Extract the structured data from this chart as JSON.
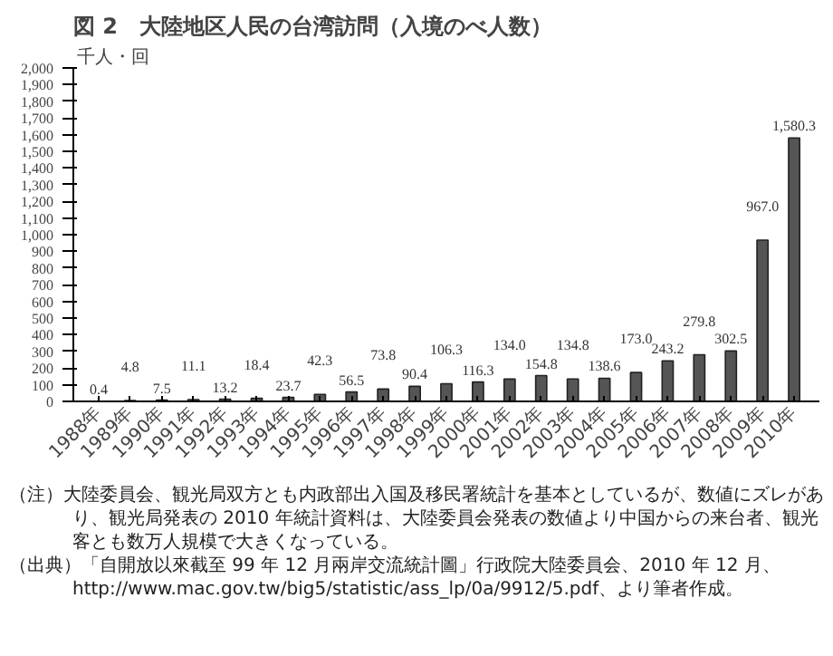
{
  "chart_data": {
    "type": "bar",
    "title": "図 2　大陸地区人民の台湾訪問（入境のべ人数）",
    "ylabel": "千人・回",
    "categories": [
      "1988年",
      "1989年",
      "1990年",
      "1991年",
      "1992年",
      "1993年",
      "1994年",
      "1995年",
      "1996年",
      "1997年",
      "1998年",
      "1999年",
      "2000年",
      "2001年",
      "2002年",
      "2003年",
      "2004年",
      "2005年",
      "2006年",
      "2007年",
      "2008年",
      "2009年",
      "2010年"
    ],
    "values": [
      0.4,
      4.8,
      7.5,
      11.1,
      13.2,
      18.4,
      23.7,
      42.3,
      56.5,
      73.8,
      90.4,
      106.3,
      116.3,
      134.0,
      154.8,
      134.8,
      138.6,
      173.0,
      243.2,
      279.8,
      302.5,
      967.0,
      1580.3
    ],
    "value_labels": [
      "0.4",
      "4.8",
      "7.5",
      "11.1",
      "13.2",
      "18.4",
      "23.7",
      "42.3",
      "56.5",
      "73.8",
      "90.4",
      "106.3",
      "116.3",
      "134.0",
      "154.8",
      "134.8",
      "138.6",
      "173.0",
      "243.2",
      "279.8",
      "302.5",
      "967.0",
      "1,580.3"
    ],
    "color": "#555555",
    "ylim": [
      0,
      2000
    ],
    "yticks": [
      0,
      100,
      200,
      300,
      400,
      500,
      600,
      700,
      800,
      900,
      {
        "value": 1000,
        "label": "1,000"
      },
      {
        "value": 1100,
        "label": "1,100"
      },
      {
        "value": 1200,
        "label": "1,200"
      },
      {
        "value": 1300,
        "label": "1,300"
      },
      {
        "value": 1400,
        "label": "1,400"
      },
      {
        "value": 1500,
        "label": "1,500"
      },
      {
        "value": 1600,
        "label": "1,600"
      },
      {
        "value": 1700,
        "label": "1,700"
      },
      {
        "value": 1800,
        "label": "1,800"
      },
      {
        "value": 1900,
        "label": "1,900"
      },
      {
        "value": 2000,
        "label": "2,000"
      }
    ],
    "grid": false,
    "annotations": [
      "（注）大陸委員会、観光局双方とも内政部出入国及移民署統計を基本としているが、数値にズレがあり、観光局発表の 2010 年統計資料は、大陸委員会発表の数値より中国からの来台者、観光客とも数万人規模で大きくなっている。",
      "（出典）「自開放以來截至 99 年 12 月兩岸交流統計圖」行政院大陸委員会、2010 年 12 月、http://www.mac.gov.tw/big5/statistic/ass_lp/0a/9912/5.pdf、より筆者作成。"
    ]
  }
}
